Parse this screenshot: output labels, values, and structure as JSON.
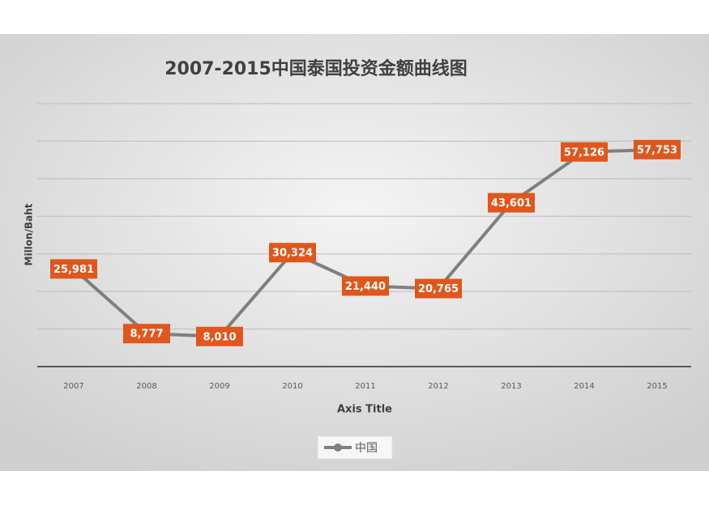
{
  "chart_data": {
    "type": "line",
    "title": "2007-2015中国泰国投资金额曲线图",
    "x_label": "Axis Title",
    "y_label": "Millon/Baht",
    "categories": [
      "2007",
      "2008",
      "2009",
      "2010",
      "2011",
      "2012",
      "2013",
      "2014",
      "2015"
    ],
    "series": [
      {
        "name": "中国",
        "color": "#7f7f7f",
        "values": [
          25981,
          8777,
          8010,
          30324,
          21440,
          20765,
          43601,
          57126,
          57753
        ],
        "value_labels": [
          "25,981",
          "8,777",
          "8,010",
          "30,324",
          "21,440",
          "20,765",
          "43,601",
          "57,126",
          "57,753"
        ]
      }
    ],
    "label_color": "#e0561b",
    "ylim": [
      0,
      70000
    ],
    "yticks": [
      0,
      10000,
      20000,
      30000,
      40000,
      50000,
      60000,
      70000
    ],
    "ytick_labels": false,
    "grid": true,
    "legend": "bottom"
  }
}
